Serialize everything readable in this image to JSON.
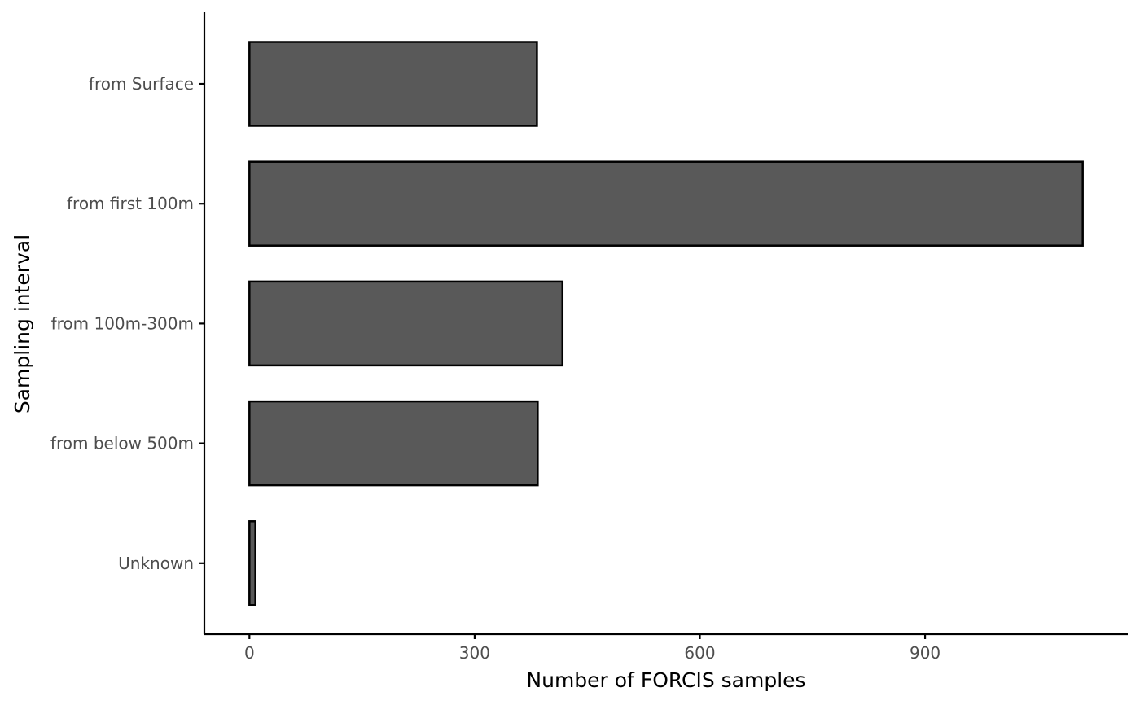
{
  "chart_data": {
    "type": "bar",
    "orientation": "horizontal",
    "categories": [
      "from Surface",
      "from first 100m",
      "from 100m-300m",
      "from below 500m",
      "Unknown"
    ],
    "values": [
      383,
      1110,
      417,
      384,
      8
    ],
    "xlabel": "Number of FORCIS samples",
    "ylabel": "Sampling interval",
    "xlim": [
      -60,
      1170
    ],
    "xticks": [
      0,
      300,
      600,
      900
    ],
    "grid": false,
    "bar_color": "#595959",
    "bar_border_color": "#000000"
  }
}
